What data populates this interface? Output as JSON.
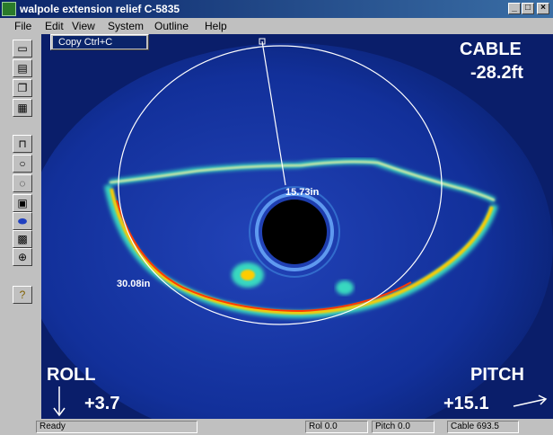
{
  "window": {
    "title": "walpole extension relief C-5835",
    "controls": {
      "minimize": "_",
      "maximize": "□",
      "close": "×"
    }
  },
  "menu": {
    "items": [
      "File",
      "Edit",
      "View",
      "System",
      "Outline",
      "Help"
    ]
  },
  "edit_menu": {
    "copy": "Copy  Ctrl+C"
  },
  "toolbar": {
    "icons": [
      "open-icon",
      "print-icon",
      "copy-icon",
      "grid-icon",
      "measure-icon",
      "circle-icon",
      "lasso-icon",
      "fill-icon",
      "ellipse-icon",
      "pattern-icon",
      "crosshair-icon",
      "help-icon"
    ]
  },
  "overlay": {
    "cable_label": "CABLE",
    "cable_value": "-28.2ft",
    "radius_inner": "15.73in",
    "radius_outer": "30.08in",
    "roll_label": "ROLL",
    "roll_value": "+3.7",
    "pitch_label": "PITCH",
    "pitch_value": "+15.1",
    "colors": {
      "background": "#0d2c8a",
      "text": "#ffffff",
      "echo_hot": "#ffcc00",
      "echo_core": "#ff3a00",
      "echo_edge": "#38d8c0"
    }
  },
  "status": {
    "ready": "Ready",
    "roll": "Rol 0.0",
    "pitch": "Pitch 0.0",
    "cable": "Cable 693.5"
  }
}
